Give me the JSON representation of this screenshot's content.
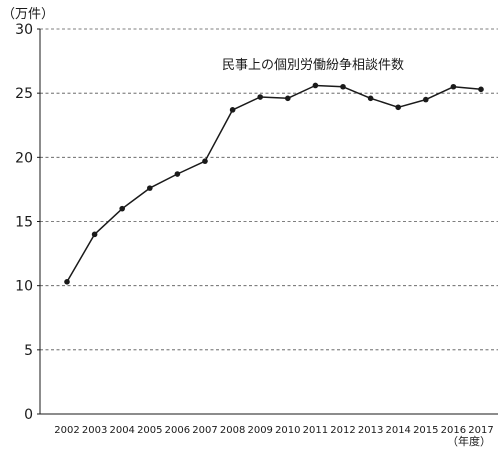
{
  "chart_data": {
    "type": "line",
    "title": "民事上の個別労働紛争相談件数",
    "ylabel": "（万件）",
    "xlabel": "（年度）",
    "ylim": [
      0,
      30
    ],
    "yticks": [
      0,
      5,
      10,
      15,
      20,
      25,
      30
    ],
    "grid": "horizontal dashed",
    "categories": [
      "2002",
      "2003",
      "2004",
      "2005",
      "2006",
      "2007",
      "2008",
      "2009",
      "2010",
      "2011",
      "2012",
      "2013",
      "2014",
      "2015",
      "2016",
      "2017"
    ],
    "series": [
      {
        "values": [
          10.3,
          14.0,
          16.0,
          17.6,
          18.7,
          19.7,
          23.7,
          24.7,
          24.6,
          25.6,
          25.5,
          24.6,
          23.9,
          24.5,
          25.5,
          25.3
        ]
      }
    ],
    "colors": {
      "line": "#1a1a1a",
      "marker": "#1a1a1a",
      "grid": "#555555",
      "axis": "#1a1a1a"
    }
  }
}
